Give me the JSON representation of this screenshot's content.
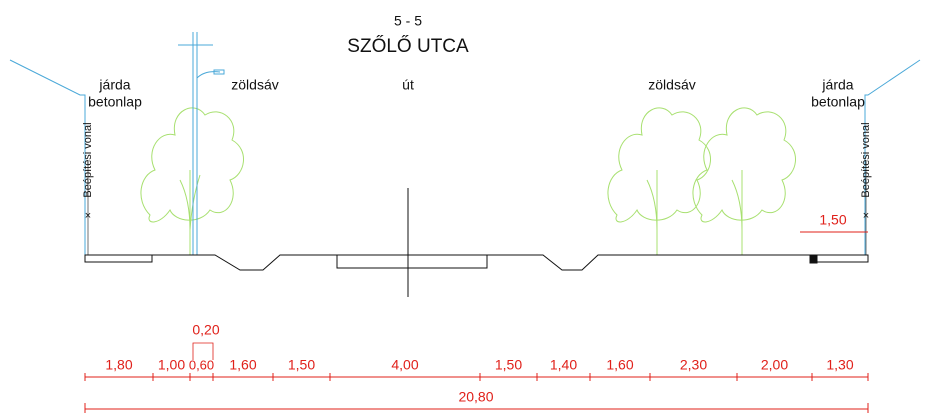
{
  "header": {
    "section": "5 - 5",
    "title": "SZŐLŐ UTCA"
  },
  "zones": [
    {
      "lines": [
        "járda",
        "betonlap"
      ]
    },
    {
      "lines": [
        "zöldsáv"
      ]
    },
    {
      "lines": [
        "út"
      ]
    },
    {
      "lines": [
        "zöldsáv"
      ]
    },
    {
      "lines": [
        "járda",
        "betonlap"
      ]
    }
  ],
  "building_line": [
    "Beépítési vonal",
    "Beépítési vonal"
  ],
  "dimensions": {
    "setback": "1,50",
    "pole_offset": "0,20",
    "segments": [
      "1,80",
      "1,00",
      "0,60",
      "1,60",
      "1,50",
      "4,00",
      "1,50",
      "1,40",
      "1,60",
      "2,30",
      "2,00",
      "1,30"
    ],
    "total": "20,80"
  }
}
